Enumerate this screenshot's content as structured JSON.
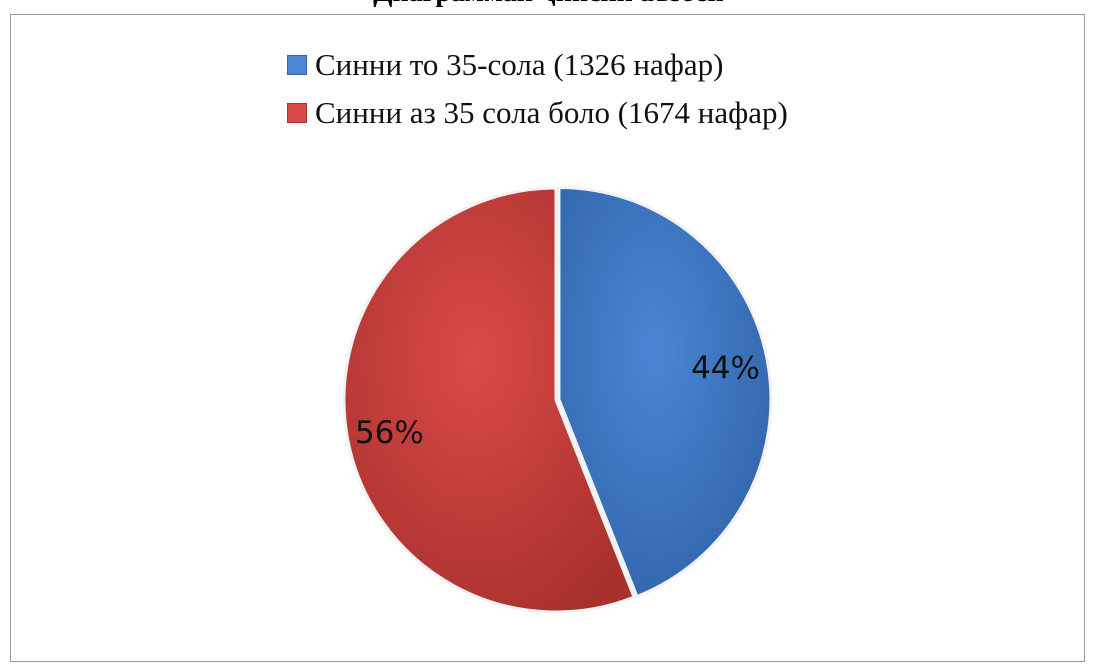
{
  "chart_data": {
    "type": "pie",
    "title": "Диаграммаи ҷинсии аъзоён",
    "slices": [
      {
        "label": "Синни то 35-сола (1326 нафар)",
        "value": 44,
        "display": "44%",
        "color": "#4a86d4",
        "color_dark": "#2f63a8"
      },
      {
        "label": "Синни аз 35 сола боло (1674 нафар)",
        "value": 56,
        "display": "56%",
        "color": "#d94a46",
        "color_dark": "#a8302d"
      }
    ],
    "legend_position": "top",
    "start_angle": "12 o'clock, clockwise"
  }
}
